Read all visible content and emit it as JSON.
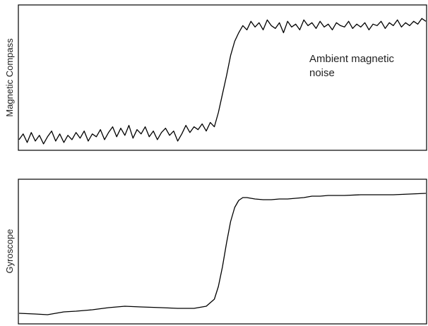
{
  "chart_data": [
    {
      "type": "line",
      "ylabel": "Magnetic Compass",
      "annotation": [
        "Ambient magnetic",
        "noise"
      ],
      "xlim": [
        0,
        100
      ],
      "ylim": [
        0,
        1
      ],
      "grid": false,
      "series": [
        {
          "x": [
            0,
            1,
            2,
            3,
            4,
            5,
            6,
            7,
            8,
            9,
            10,
            11,
            12,
            13,
            14,
            15,
            16,
            17,
            18,
            19,
            20,
            21,
            22,
            23,
            24,
            25,
            26,
            27,
            28,
            29,
            30,
            31,
            32,
            33,
            34,
            35,
            36,
            37,
            38,
            39,
            40,
            41,
            42,
            43,
            44,
            45,
            46,
            47,
            48,
            49,
            50,
            51,
            52,
            53,
            54,
            55,
            56,
            57,
            58,
            59,
            60,
            61,
            62,
            63,
            64,
            65,
            66,
            67,
            68,
            69,
            70,
            71,
            72,
            73,
            74,
            75,
            76,
            77,
            78,
            79,
            80,
            81,
            82,
            83,
            84,
            85,
            86,
            87,
            88,
            89,
            90,
            91,
            92,
            93,
            94,
            95,
            96,
            97,
            98,
            99,
            100
          ],
          "values": [
            0.07,
            0.11,
            0.05,
            0.12,
            0.06,
            0.1,
            0.04,
            0.09,
            0.13,
            0.06,
            0.11,
            0.05,
            0.1,
            0.07,
            0.12,
            0.08,
            0.13,
            0.06,
            0.11,
            0.09,
            0.14,
            0.07,
            0.12,
            0.16,
            0.09,
            0.15,
            0.1,
            0.17,
            0.08,
            0.14,
            0.11,
            0.16,
            0.09,
            0.13,
            0.07,
            0.12,
            0.15,
            0.1,
            0.13,
            0.06,
            0.11,
            0.17,
            0.12,
            0.16,
            0.14,
            0.18,
            0.13,
            0.19,
            0.16,
            0.26,
            0.39,
            0.52,
            0.66,
            0.76,
            0.82,
            0.87,
            0.84,
            0.9,
            0.86,
            0.89,
            0.84,
            0.91,
            0.87,
            0.85,
            0.89,
            0.82,
            0.9,
            0.86,
            0.88,
            0.84,
            0.91,
            0.87,
            0.89,
            0.85,
            0.9,
            0.86,
            0.88,
            0.84,
            0.89,
            0.87,
            0.86,
            0.9,
            0.85,
            0.88,
            0.86,
            0.89,
            0.84,
            0.88,
            0.87,
            0.9,
            0.85,
            0.89,
            0.87,
            0.91,
            0.86,
            0.89,
            0.87,
            0.9,
            0.88,
            0.92,
            0.9
          ]
        }
      ]
    },
    {
      "type": "line",
      "ylabel": "Gyroscope",
      "xlim": [
        0,
        100
      ],
      "ylim": [
        0,
        1
      ],
      "grid": false,
      "series": [
        {
          "x": [
            0,
            4,
            7,
            11,
            14,
            18,
            22,
            26,
            30,
            35,
            39,
            43,
            46,
            48,
            49,
            50,
            51,
            52,
            53,
            54,
            55,
            56,
            57,
            58,
            60,
            62,
            64,
            66,
            68,
            70,
            72,
            74,
            76,
            78,
            80,
            84,
            88,
            92,
            96,
            100
          ],
          "values": [
            0.07,
            0.065,
            0.06,
            0.08,
            0.085,
            0.095,
            0.11,
            0.12,
            0.115,
            0.11,
            0.105,
            0.105,
            0.12,
            0.17,
            0.26,
            0.4,
            0.57,
            0.72,
            0.82,
            0.87,
            0.89,
            0.89,
            0.885,
            0.88,
            0.875,
            0.875,
            0.88,
            0.88,
            0.885,
            0.89,
            0.9,
            0.9,
            0.905,
            0.905,
            0.905,
            0.91,
            0.91,
            0.91,
            0.915,
            0.92
          ]
        }
      ]
    }
  ]
}
